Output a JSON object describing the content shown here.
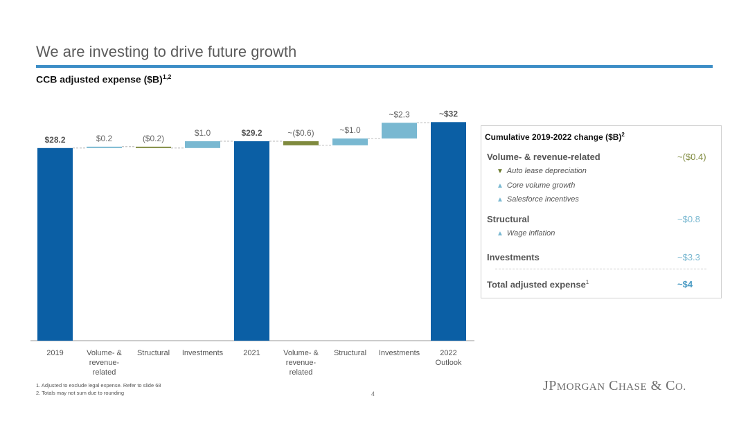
{
  "title": "We are investing to drive future growth",
  "subtitle": {
    "text": "CCB adjusted expense ($B)",
    "sup": "1,2"
  },
  "chart_data": {
    "type": "bar",
    "subtype": "waterfall",
    "title": "CCB adjusted expense ($B)",
    "categories": [
      "2019",
      "Volume- & revenue-related",
      "Structural",
      "Investments",
      "2021",
      "Volume- & revenue-related",
      "Structural",
      "Investments",
      "2022 Outlook"
    ],
    "bars": [
      {
        "category": "2019",
        "kind": "total",
        "start": 0,
        "end": 28.2,
        "label": "$28.2",
        "color": "#0b5fa5"
      },
      {
        "category": "Volume- & revenue-related",
        "kind": "increase",
        "start": 28.2,
        "end": 28.4,
        "label": "$0.2",
        "color": "#79b8d1"
      },
      {
        "category": "Structural",
        "kind": "decrease",
        "start": 28.4,
        "end": 28.2,
        "label": "($0.2)",
        "color": "#7f8a3e"
      },
      {
        "category": "Investments",
        "kind": "increase",
        "start": 28.2,
        "end": 29.2,
        "label": "$1.0",
        "color": "#79b8d1"
      },
      {
        "category": "2021",
        "kind": "total",
        "start": 0,
        "end": 29.2,
        "label": "$29.2",
        "color": "#0b5fa5"
      },
      {
        "category": "Volume- & revenue-related",
        "kind": "decrease",
        "start": 29.2,
        "end": 28.6,
        "label": "~($0.6)",
        "color": "#7f8a3e"
      },
      {
        "category": "Structural",
        "kind": "increase",
        "start": 28.6,
        "end": 29.6,
        "label": "~$1.0",
        "color": "#79b8d1"
      },
      {
        "category": "Investments",
        "kind": "increase",
        "start": 29.6,
        "end": 31.9,
        "label": "~$2.3",
        "color": "#79b8d1"
      },
      {
        "category": "2022 Outlook",
        "kind": "total",
        "start": 0,
        "end": 32,
        "label": "~$32",
        "color": "#0b5fa5"
      }
    ],
    "tick_labels": [
      [
        "2019"
      ],
      [
        "Volume- &",
        "revenue-",
        "related"
      ],
      [
        "Structural"
      ],
      [
        "Investments"
      ],
      [
        "2021"
      ],
      [
        "Volume- &",
        "revenue-",
        "related"
      ],
      [
        "Structural"
      ],
      [
        "Investments"
      ],
      [
        "2022",
        "Outlook"
      ]
    ],
    "ylim": [
      0,
      32
    ],
    "grid": false,
    "legend": "none"
  },
  "panel": {
    "title": "Cumulative 2019-2022 change ($B)",
    "title_sup": "2",
    "groups": [
      {
        "label": "Volume- & revenue-related",
        "value": "~($0.4)",
        "value_color": "#7f8a3e",
        "items": [
          {
            "arrow": "▼",
            "arrow_color": "#6b7a2e",
            "text": "Auto lease depreciation"
          },
          {
            "arrow": "▲",
            "arrow_color": "#79b8d1",
            "text": "Core volume growth"
          },
          {
            "arrow": "▲",
            "arrow_color": "#79b8d1",
            "text": "Salesforce incentives"
          }
        ]
      },
      {
        "label": "Structural",
        "value": "~$0.8",
        "value_color": "#79b8d1",
        "items": [
          {
            "arrow": "▲",
            "arrow_color": "#79b8d1",
            "text": "Wage inflation"
          }
        ]
      },
      {
        "label": "Investments",
        "value": "~$3.3",
        "value_color": "#79b8d1",
        "items": []
      }
    ],
    "total_label": "Total adjusted expense",
    "total_sup": "1",
    "total_value": "~$4",
    "total_value_color": "#4a9bc4"
  },
  "footnotes": [
    "1. Adjusted to exclude legal expense. Refer to slide 68",
    "2. Totals may not sum due to rounding"
  ],
  "page_number": "4",
  "logo_text": "JPMORGAN CHASE & CO."
}
